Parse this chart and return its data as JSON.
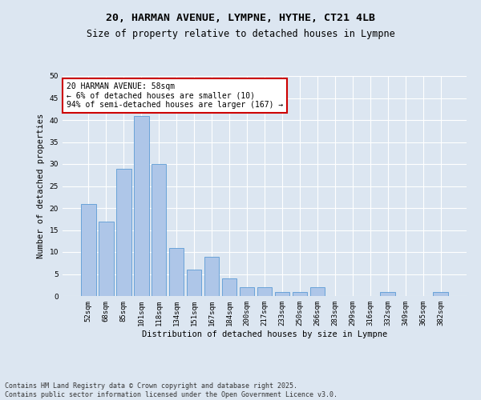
{
  "title": "20, HARMAN AVENUE, LYMPNE, HYTHE, CT21 4LB",
  "subtitle": "Size of property relative to detached houses in Lympne",
  "xlabel": "Distribution of detached houses by size in Lympne",
  "ylabel": "Number of detached properties",
  "categories": [
    "52sqm",
    "68sqm",
    "85sqm",
    "101sqm",
    "118sqm",
    "134sqm",
    "151sqm",
    "167sqm",
    "184sqm",
    "200sqm",
    "217sqm",
    "233sqm",
    "250sqm",
    "266sqm",
    "283sqm",
    "299sqm",
    "316sqm",
    "332sqm",
    "349sqm",
    "365sqm",
    "382sqm"
  ],
  "values": [
    21,
    17,
    29,
    41,
    30,
    11,
    6,
    9,
    4,
    2,
    2,
    1,
    1,
    2,
    0,
    0,
    0,
    1,
    0,
    0,
    1
  ],
  "bar_color": "#aec6e8",
  "bar_edge_color": "#5b9bd5",
  "ylim": [
    0,
    50
  ],
  "yticks": [
    0,
    5,
    10,
    15,
    20,
    25,
    30,
    35,
    40,
    45,
    50
  ],
  "background_color": "#dce6f1",
  "plot_bg_color": "#dce6f1",
  "grid_color": "#ffffff",
  "annotation_text": "20 HARMAN AVENUE: 58sqm\n← 6% of detached houses are smaller (10)\n94% of semi-detached houses are larger (167) →",
  "annotation_box_color": "#ffffff",
  "annotation_border_color": "#cc0000",
  "footer_text": "Contains HM Land Registry data © Crown copyright and database right 2025.\nContains public sector information licensed under the Open Government Licence v3.0.",
  "title_fontsize": 9.5,
  "subtitle_fontsize": 8.5,
  "axis_label_fontsize": 7.5,
  "tick_fontsize": 6.5,
  "annotation_fontsize": 7,
  "footer_fontsize": 6
}
